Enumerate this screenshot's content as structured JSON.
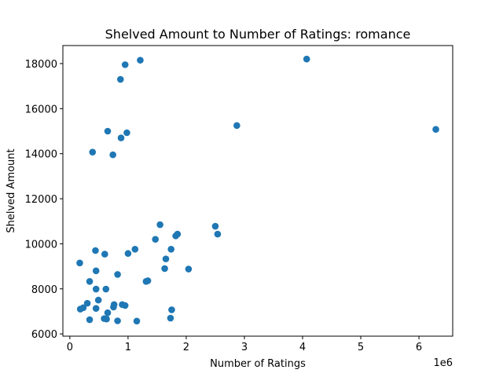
{
  "chart_data": {
    "type": "scatter",
    "title": "Shelved Amount to Number of Ratings: romance",
    "xlabel": "Number of Ratings",
    "ylabel": "Shelved Amount",
    "x_offset_label": "1e6",
    "x_scale": 1000000,
    "xlim": [
      -120000,
      6580000
    ],
    "ylim": [
      5900000,
      18800000
    ],
    "ylim_units": [
      5900,
      18800
    ],
    "xticks": [
      0,
      1,
      2,
      3,
      4,
      5,
      6
    ],
    "xtick_labels": [
      "0",
      "1",
      "2",
      "3",
      "4",
      "5",
      "6"
    ],
    "yticks": [
      6000,
      8000,
      10000,
      12000,
      14000,
      16000,
      18000
    ],
    "ytick_labels": [
      "6000",
      "8000",
      "10000",
      "12000",
      "14000",
      "16000",
      "18000"
    ],
    "marker_color": "#1f77b4",
    "grid": false,
    "legend": null,
    "series": [
      {
        "points": [
          [
            1210000,
            18150
          ],
          [
            4070000,
            18200
          ],
          [
            950000,
            17950
          ],
          [
            870000,
            17300
          ],
          [
            2870000,
            15250
          ],
          [
            6290000,
            15080
          ],
          [
            650000,
            15000
          ],
          [
            980000,
            14930
          ],
          [
            880000,
            14700
          ],
          [
            390000,
            14070
          ],
          [
            740000,
            13950
          ],
          [
            1550000,
            10850
          ],
          [
            2500000,
            10780
          ],
          [
            2540000,
            10430
          ],
          [
            1850000,
            10430
          ],
          [
            1820000,
            10350
          ],
          [
            1470000,
            10200
          ],
          [
            1120000,
            9760
          ],
          [
            1740000,
            9760
          ],
          [
            440000,
            9700
          ],
          [
            1000000,
            9570
          ],
          [
            600000,
            9540
          ],
          [
            170000,
            9150
          ],
          [
            1650000,
            9330
          ],
          [
            1630000,
            8900
          ],
          [
            2040000,
            8880
          ],
          [
            450000,
            8800
          ],
          [
            820000,
            8640
          ],
          [
            1340000,
            8360
          ],
          [
            1310000,
            8330
          ],
          [
            340000,
            8330
          ],
          [
            450000,
            7990
          ],
          [
            620000,
            7990
          ],
          [
            490000,
            7500
          ],
          [
            300000,
            7360
          ],
          [
            760000,
            7300
          ],
          [
            900000,
            7300
          ],
          [
            950000,
            7260
          ],
          [
            750000,
            7190
          ],
          [
            230000,
            7160
          ],
          [
            180000,
            7100
          ],
          [
            450000,
            7130
          ],
          [
            1750000,
            7070
          ],
          [
            650000,
            6940
          ],
          [
            590000,
            6680
          ],
          [
            630000,
            6660
          ],
          [
            340000,
            6630
          ],
          [
            1730000,
            6700
          ],
          [
            820000,
            6580
          ],
          [
            1150000,
            6570
          ]
        ]
      }
    ]
  }
}
